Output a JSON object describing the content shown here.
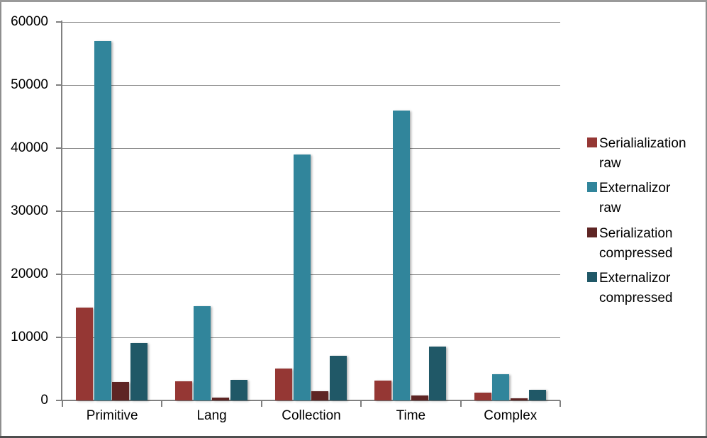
{
  "chart_data": {
    "type": "bar",
    "title": "",
    "categories": [
      "Primitive",
      "Lang",
      "Collection",
      "Time",
      "Complex"
    ],
    "series": [
      {
        "name": "Serialialization raw",
        "label_lines": [
          "Serialialization",
          "raw"
        ],
        "color": "#953734",
        "values": [
          14700,
          3000,
          5100,
          3100,
          1200
        ]
      },
      {
        "name": "Externalizor raw",
        "label_lines": [
          "Externalizor",
          "raw"
        ],
        "color": "#31859B",
        "values": [
          57000,
          15000,
          39000,
          46000,
          4200
        ]
      },
      {
        "name": "Serialization compressed",
        "label_lines": [
          "Serialization",
          "compressed"
        ],
        "color": "#5E2524",
        "values": [
          2900,
          450,
          1450,
          800,
          300
        ]
      },
      {
        "name": "Externalizor compressed",
        "label_lines": [
          "Externalizor",
          "compressed"
        ],
        "color": "#205867",
        "values": [
          9100,
          3300,
          7100,
          8500,
          1700
        ]
      }
    ],
    "ylim": [
      0,
      60000
    ],
    "ytick_interval": 10000,
    "ytick_labels": [
      "0",
      "10000",
      "20000",
      "30000",
      "40000",
      "50000",
      "60000"
    ],
    "xlabel": "",
    "ylabel": "",
    "grid": true,
    "legend_position": "right",
    "axis_color": "#808080",
    "gridline_color": "#8E8E8E",
    "background_color": "#FFFFFF",
    "border_color": "#8F8F8F"
  }
}
